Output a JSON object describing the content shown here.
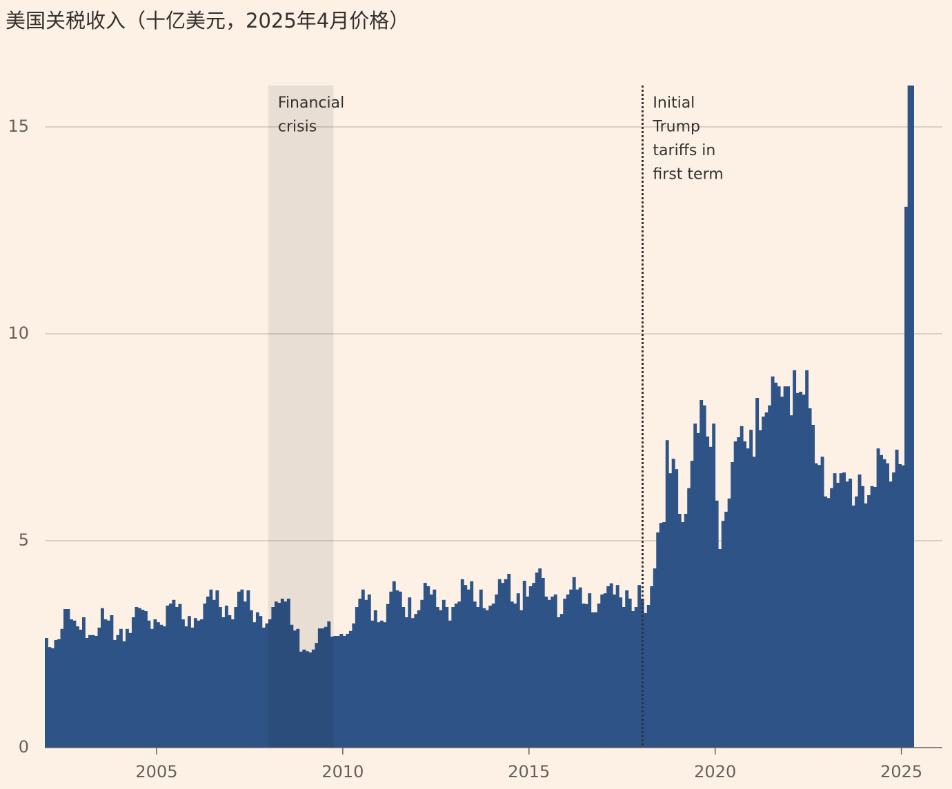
{
  "chart_data": {
    "type": "bar",
    "title": "美国关税收入（十亿美元，2025年4月价格）",
    "color": "#2e5387",
    "xlim": [
      2002,
      2026.1
    ],
    "ylim": [
      0,
      16
    ],
    "xticks": [
      2005,
      2010,
      2015,
      2020,
      2025
    ],
    "yticks": [
      0,
      5,
      10,
      15
    ],
    "grid": true,
    "shaded_regions": [
      {
        "x": [
          2008,
          2009.75
        ],
        "lines": [
          "Financial",
          "crisis"
        ]
      }
    ],
    "vlines": [
      {
        "x": 2018.05,
        "lines": [
          "Initial",
          "Trump",
          "tariffs in",
          "first term"
        ]
      }
    ],
    "x": [
      2002,
      2002.083,
      2002.167,
      2002.25,
      2002.333,
      2002.417,
      2002.5,
      2002.583,
      2002.667,
      2002.75,
      2002.833,
      2002.917,
      2003,
      2003.083,
      2003.167,
      2003.25,
      2003.333,
      2003.417,
      2003.5,
      2003.583,
      2003.667,
      2003.75,
      2003.833,
      2003.917,
      2004,
      2004.083,
      2004.167,
      2004.25,
      2004.333,
      2004.417,
      2004.5,
      2004.583,
      2004.667,
      2004.75,
      2004.833,
      2004.917,
      2005,
      2005.083,
      2005.167,
      2005.25,
      2005.333,
      2005.417,
      2005.5,
      2005.583,
      2005.667,
      2005.75,
      2005.833,
      2005.917,
      2006,
      2006.083,
      2006.167,
      2006.25,
      2006.333,
      2006.417,
      2006.5,
      2006.583,
      2006.667,
      2006.75,
      2006.833,
      2006.917,
      2007,
      2007.083,
      2007.167,
      2007.25,
      2007.333,
      2007.417,
      2007.5,
      2007.583,
      2007.667,
      2007.75,
      2007.833,
      2007.917,
      2008,
      2008.083,
      2008.167,
      2008.25,
      2008.333,
      2008.417,
      2008.5,
      2008.583,
      2008.667,
      2008.75,
      2008.833,
      2008.917,
      2009,
      2009.083,
      2009.167,
      2009.25,
      2009.333,
      2009.417,
      2009.5,
      2009.583,
      2009.667,
      2009.75,
      2009.833,
      2009.917,
      2010,
      2010.083,
      2010.167,
      2010.25,
      2010.333,
      2010.417,
      2010.5,
      2010.583,
      2010.667,
      2010.75,
      2010.833,
      2010.917,
      2011,
      2011.083,
      2011.167,
      2011.25,
      2011.333,
      2011.417,
      2011.5,
      2011.583,
      2011.667,
      2011.75,
      2011.833,
      2011.917,
      2012,
      2012.083,
      2012.167,
      2012.25,
      2012.333,
      2012.417,
      2012.5,
      2012.583,
      2012.667,
      2012.75,
      2012.833,
      2012.917,
      2013,
      2013.083,
      2013.167,
      2013.25,
      2013.333,
      2013.417,
      2013.5,
      2013.583,
      2013.667,
      2013.75,
      2013.833,
      2013.917,
      2014,
      2014.083,
      2014.167,
      2014.25,
      2014.333,
      2014.417,
      2014.5,
      2014.583,
      2014.667,
      2014.75,
      2014.833,
      2014.917,
      2015,
      2015.083,
      2015.167,
      2015.25,
      2015.333,
      2015.417,
      2015.5,
      2015.583,
      2015.667,
      2015.75,
      2015.833,
      2015.917,
      2016,
      2016.083,
      2016.167,
      2016.25,
      2016.333,
      2016.417,
      2016.5,
      2016.583,
      2016.667,
      2016.75,
      2016.833,
      2016.917,
      2017,
      2017.083,
      2017.167,
      2017.25,
      2017.333,
      2017.417,
      2017.5,
      2017.583,
      2017.667,
      2017.75,
      2017.833,
      2017.917,
      2018,
      2018.083,
      2018.167,
      2018.25,
      2018.333,
      2018.417,
      2018.5,
      2018.583,
      2018.667,
      2018.75,
      2018.833,
      2018.917,
      2019,
      2019.083,
      2019.167,
      2019.25,
      2019.333,
      2019.417,
      2019.5,
      2019.583,
      2019.667,
      2019.75,
      2019.833,
      2019.917,
      2020,
      2020.083,
      2020.167,
      2020.25,
      2020.333,
      2020.417,
      2020.5,
      2020.583,
      2020.667,
      2020.75,
      2020.833,
      2020.917,
      2021,
      2021.083,
      2021.167,
      2021.25,
      2021.333,
      2021.417,
      2021.5,
      2021.583,
      2021.667,
      2021.75,
      2021.833,
      2021.917,
      2022,
      2022.083,
      2022.167,
      2022.25,
      2022.333,
      2022.417,
      2022.5,
      2022.583,
      2022.667,
      2022.75,
      2022.833,
      2022.917,
      2023,
      2023.083,
      2023.167,
      2023.25,
      2023.333,
      2023.417,
      2023.5,
      2023.583,
      2023.667,
      2023.75,
      2023.833,
      2023.917,
      2024,
      2024.083,
      2024.167,
      2024.25,
      2024.333,
      2024.417,
      2024.5,
      2024.583,
      2024.667,
      2024.75,
      2024.833,
      2024.917,
      2025,
      2025.083,
      2025.167,
      2025.25
    ],
    "values": [
      2.65,
      2.43,
      2.4,
      2.6,
      2.62,
      2.87,
      3.35,
      3.35,
      3.1,
      3.07,
      2.93,
      2.85,
      3.15,
      2.65,
      2.72,
      2.72,
      2.7,
      2.9,
      3.37,
      3.1,
      3.07,
      3.2,
      2.6,
      2.72,
      2.87,
      2.57,
      2.87,
      2.77,
      3.15,
      3.4,
      3.37,
      3.33,
      3.3,
      3.07,
      2.87,
      3.1,
      3.03,
      2.97,
      2.93,
      3.43,
      3.48,
      3.57,
      3.4,
      3.47,
      3.1,
      2.93,
      3.18,
      2.9,
      3.13,
      3.07,
      3.1,
      3.48,
      3.65,
      3.82,
      3.57,
      3.8,
      3.4,
      3.15,
      3.43,
      3.2,
      3.1,
      3.4,
      3.77,
      3.82,
      3.53,
      3.8,
      3.32,
      3.03,
      3.27,
      3.18,
      2.9,
      3.0,
      3.1,
      3.4,
      3.53,
      3.5,
      3.6,
      3.53,
      3.6,
      2.97,
      2.83,
      2.87,
      2.32,
      2.37,
      2.33,
      2.3,
      2.37,
      2.53,
      2.88,
      2.88,
      2.92,
      3.05,
      2.68,
      2.7,
      2.7,
      2.75,
      2.7,
      2.75,
      2.82,
      3.0,
      3.4,
      3.6,
      3.82,
      3.57,
      3.7,
      3.07,
      3.32,
      3.03,
      3.07,
      3.03,
      3.47,
      3.77,
      4.02,
      3.8,
      3.77,
      3.4,
      3.15,
      3.63,
      3.13,
      3.23,
      3.32,
      3.57,
      3.98,
      3.9,
      3.7,
      3.82,
      3.4,
      3.32,
      3.57,
      3.4,
      3.07,
      3.4,
      3.48,
      3.53,
      4.07,
      3.93,
      3.82,
      4.02,
      3.53,
      3.4,
      3.82,
      3.37,
      3.32,
      3.43,
      3.48,
      3.7,
      4.07,
      3.98,
      4.07,
      4.2,
      3.53,
      3.48,
      3.73,
      3.32,
      4.03,
      3.65,
      3.9,
      3.98,
      4.23,
      4.33,
      4.1,
      3.65,
      3.57,
      3.65,
      3.7,
      3.15,
      3.23,
      3.6,
      3.7,
      3.82,
      4.12,
      3.82,
      3.87,
      3.48,
      3.47,
      3.73,
      3.27,
      3.27,
      3.48,
      3.7,
      3.73,
      3.9,
      3.97,
      3.7,
      3.93,
      3.63,
      3.4,
      3.8,
      3.6,
      3.3,
      3.4,
      3.93,
      3.6,
      3.25,
      3.45,
      3.9,
      4.33,
      5.2,
      5.43,
      5.45,
      7.43,
      6.63,
      6.98,
      6.73,
      5.65,
      5.45,
      5.65,
      6.27,
      6.93,
      7.83,
      7.6,
      8.4,
      8.27,
      7.52,
      7.27,
      7.83,
      5.97,
      4.8,
      5.48,
      5.7,
      6.02,
      6.9,
      7.4,
      7.5,
      7.77,
      7.4,
      7.23,
      7.68,
      7.03,
      8.45,
      7.67,
      8.0,
      8.1,
      8.27,
      8.97,
      8.82,
      8.73,
      8.48,
      8.73,
      8.73,
      8.03,
      9.12,
      8.57,
      8.6,
      8.53,
      9.12,
      8.2,
      7.8,
      6.87,
      6.83,
      7.03,
      6.07,
      6.03,
      6.27,
      6.63,
      6.4,
      6.63,
      6.65,
      6.43,
      6.5,
      5.85,
      6.07,
      6.6,
      6.32,
      5.9,
      6.1,
      6.32,
      6.3,
      7.23,
      7.07,
      6.97,
      6.87,
      6.43,
      6.65,
      7.2,
      6.85,
      6.82,
      13.07,
      16.0,
      16.0
    ]
  }
}
